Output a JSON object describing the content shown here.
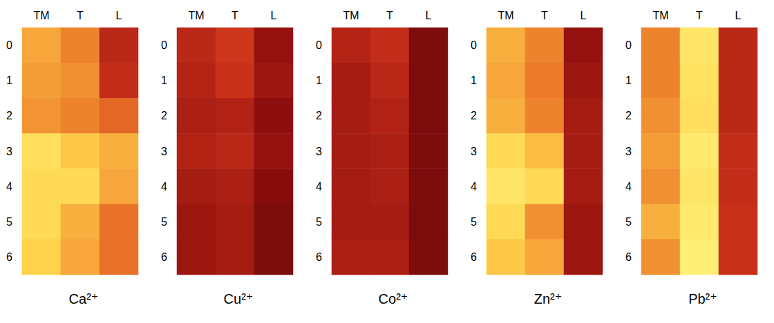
{
  "chart_data": [
    {
      "type": "heatmap",
      "title": "Ca²⁺",
      "x": [
        "TM",
        "T",
        "L"
      ],
      "y": [
        "0",
        "1",
        "2",
        "3",
        "4",
        "5",
        "6"
      ],
      "cells": [
        [
          70,
          62,
          35
        ],
        [
          68,
          65,
          38
        ],
        [
          66,
          62,
          55
        ],
        [
          88,
          78,
          72
        ],
        [
          85,
          85,
          70
        ],
        [
          85,
          72,
          58
        ],
        [
          80,
          70,
          58
        ]
      ],
      "zlim": [
        0,
        100
      ]
    },
    {
      "type": "heatmap",
      "title": "Cu²⁺",
      "x": [
        "TM",
        "T",
        "L"
      ],
      "y": [
        "0",
        "1",
        "2",
        "3",
        "4",
        "5",
        "6"
      ],
      "cells": [
        [
          35,
          42,
          22
        ],
        [
          33,
          40,
          25
        ],
        [
          30,
          32,
          20
        ],
        [
          32,
          35,
          22
        ],
        [
          28,
          30,
          18
        ],
        [
          25,
          28,
          15
        ],
        [
          25,
          28,
          15
        ]
      ],
      "zlim": [
        0,
        100
      ]
    },
    {
      "type": "heatmap",
      "title": "Co²⁺",
      "x": [
        "TM",
        "T",
        "L"
      ],
      "y": [
        "0",
        "1",
        "2",
        "3",
        "4",
        "5",
        "6"
      ],
      "cells": [
        [
          33,
          38,
          15
        ],
        [
          28,
          35,
          15
        ],
        [
          28,
          32,
          15
        ],
        [
          28,
          30,
          15
        ],
        [
          28,
          30,
          15
        ],
        [
          28,
          28,
          15
        ],
        [
          30,
          30,
          15
        ]
      ],
      "zlim": [
        0,
        100
      ]
    },
    {
      "type": "heatmap",
      "title": "Zn²⁺",
      "x": [
        "TM",
        "T",
        "L"
      ],
      "y": [
        "0",
        "1",
        "2",
        "3",
        "4",
        "5",
        "6"
      ],
      "cells": [
        [
          72,
          62,
          22
        ],
        [
          70,
          60,
          25
        ],
        [
          72,
          62,
          28
        ],
        [
          85,
          75,
          28
        ],
        [
          92,
          85,
          28
        ],
        [
          85,
          65,
          25
        ],
        [
          78,
          70,
          25
        ]
      ],
      "zlim": [
        0,
        100
      ]
    },
    {
      "type": "heatmap",
      "title": "Pb²⁺",
      "x": [
        "TM",
        "T",
        "L"
      ],
      "y": [
        "0",
        "1",
        "2",
        "3",
        "4",
        "5",
        "6"
      ],
      "cells": [
        [
          62,
          92,
          35
        ],
        [
          62,
          90,
          35
        ],
        [
          65,
          88,
          35
        ],
        [
          68,
          95,
          38
        ],
        [
          65,
          92,
          38
        ],
        [
          72,
          95,
          40
        ],
        [
          65,
          98,
          40
        ]
      ],
      "zlim": [
        0,
        100
      ]
    }
  ]
}
